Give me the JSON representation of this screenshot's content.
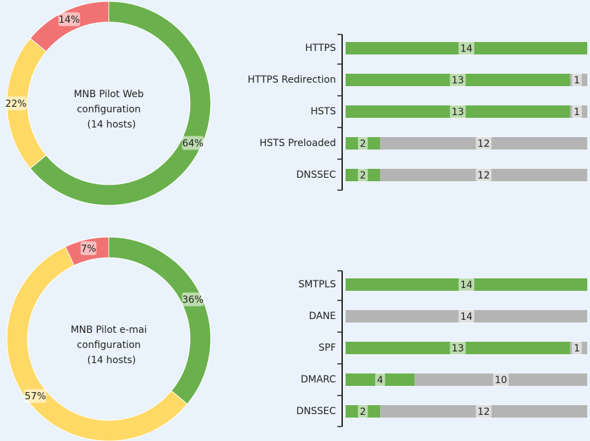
{
  "chart_data": [
    {
      "type": "donut",
      "center_text": [
        "MNB Pilot Web",
        "configuration",
        "(14 hosts)"
      ],
      "values": [
        64,
        22,
        14
      ],
      "value_labels": [
        "64%",
        "22%",
        "14%"
      ],
      "colors": [
        "#6ab04c",
        "#ffd966",
        "#f07272"
      ]
    },
    {
      "type": "stacked-barh",
      "categories": [
        "HTTPS",
        "HTTPS Redirection",
        "HSTS",
        "HSTS Preloaded",
        "DNSSEC"
      ],
      "xlim": [
        0,
        14
      ],
      "series": [
        {
          "color": "#6ab04c",
          "values": [
            14,
            13,
            13,
            2,
            2
          ]
        },
        {
          "color": "#b4b4b4",
          "values": [
            null,
            1,
            1,
            12,
            12
          ]
        }
      ]
    },
    {
      "type": "donut",
      "center_text": [
        "MNB Pilot e-mai",
        "configuration",
        "(14 hosts)"
      ],
      "values": [
        36,
        57,
        7
      ],
      "value_labels": [
        "36%",
        "57%",
        "7%"
      ],
      "colors": [
        "#6ab04c",
        "#ffd966",
        "#f07272"
      ]
    },
    {
      "type": "stacked-barh",
      "categories": [
        "SMTPLS",
        "DANE",
        "SPF",
        "DMARC",
        "DNSSEC"
      ],
      "xlim": [
        0,
        14
      ],
      "series": [
        {
          "color": "#6ab04c",
          "values": [
            14,
            null,
            13,
            4,
            2
          ]
        },
        {
          "color": "#b4b4b4",
          "values": [
            null,
            14,
            1,
            10,
            12
          ]
        }
      ]
    }
  ]
}
